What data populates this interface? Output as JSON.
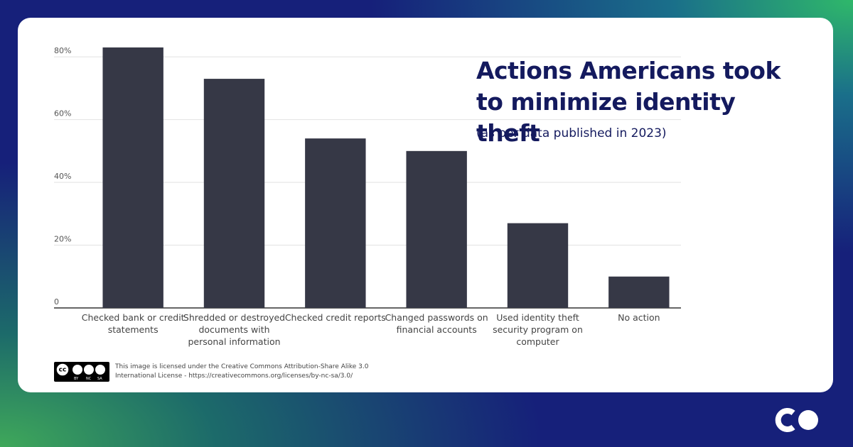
{
  "chart_data": {
    "type": "bar",
    "title": "Actions Americans took to minimize identity theft",
    "subtitle": "(as per data published in 2023)",
    "categories": [
      "Checked bank or credit statements",
      "Shredded or destroyed documents with personal information",
      "Checked credit reports",
      "Changed passwords on financial accounts",
      "Used identity theft security program on computer",
      "No action"
    ],
    "values": [
      83,
      73,
      54,
      50,
      27,
      10
    ],
    "color": "#363846",
    "ylim": [
      0,
      85
    ],
    "yticks": [
      0,
      {
        "value": 20,
        "label": "20%"
      },
      {
        "value": 40,
        "label": "40%"
      },
      {
        "value": 60,
        "label": "60%"
      },
      {
        "value": 80,
        "label": "80%"
      }
    ],
    "grid": true,
    "license": "This image is licensed under the Creative Commons Attribution-Share Alike 3.0 International License - https://creativecommons.org/licenses/by-nc-sa/3.0/",
    "badge": [
      "BY",
      "NC",
      "SA"
    ]
  }
}
